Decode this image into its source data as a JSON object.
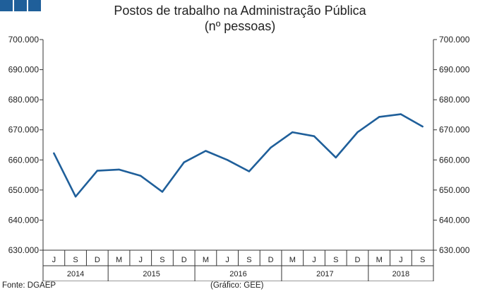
{
  "header": {
    "title_line1": "Postos de trabalho na Administração Pública",
    "title_line2": "(nº pessoas)"
  },
  "footer": {
    "source": "Fonte: DGAEP",
    "credit": "(Gráfico: GEE)"
  },
  "colors": {
    "line": "#1f5f9a",
    "brand_blocks": "#1f5f9a",
    "axis": "#333333"
  },
  "chart_data": {
    "type": "line",
    "title": "Postos de trabalho na Administração Pública",
    "subtitle": "(nº pessoas)",
    "categories": [
      "J",
      "S",
      "D",
      "M",
      "J",
      "S",
      "D",
      "M",
      "J",
      "S",
      "D",
      "M",
      "J",
      "S",
      "D",
      "M",
      "J",
      "S"
    ],
    "years": [
      {
        "label": "2014",
        "span": 3
      },
      {
        "label": "2015",
        "span": 4
      },
      {
        "label": "2016",
        "span": 4
      },
      {
        "label": "2017",
        "span": 4
      },
      {
        "label": "2018",
        "span": 3
      }
    ],
    "series": [
      {
        "values": [
          662200,
          647800,
          656400,
          656800,
          654700,
          649400,
          659200,
          663000,
          660000,
          656200,
          664100,
          669200,
          667900,
          660800,
          669200,
          674300,
          675200,
          671100
        ]
      }
    ],
    "ylim": [
      630000,
      700000
    ],
    "yticks": [
      "630.000",
      "640.000",
      "650.000",
      "660.000",
      "670.000",
      "680.000",
      "690.000",
      "700.000"
    ],
    "grid": false,
    "legend": "none"
  }
}
